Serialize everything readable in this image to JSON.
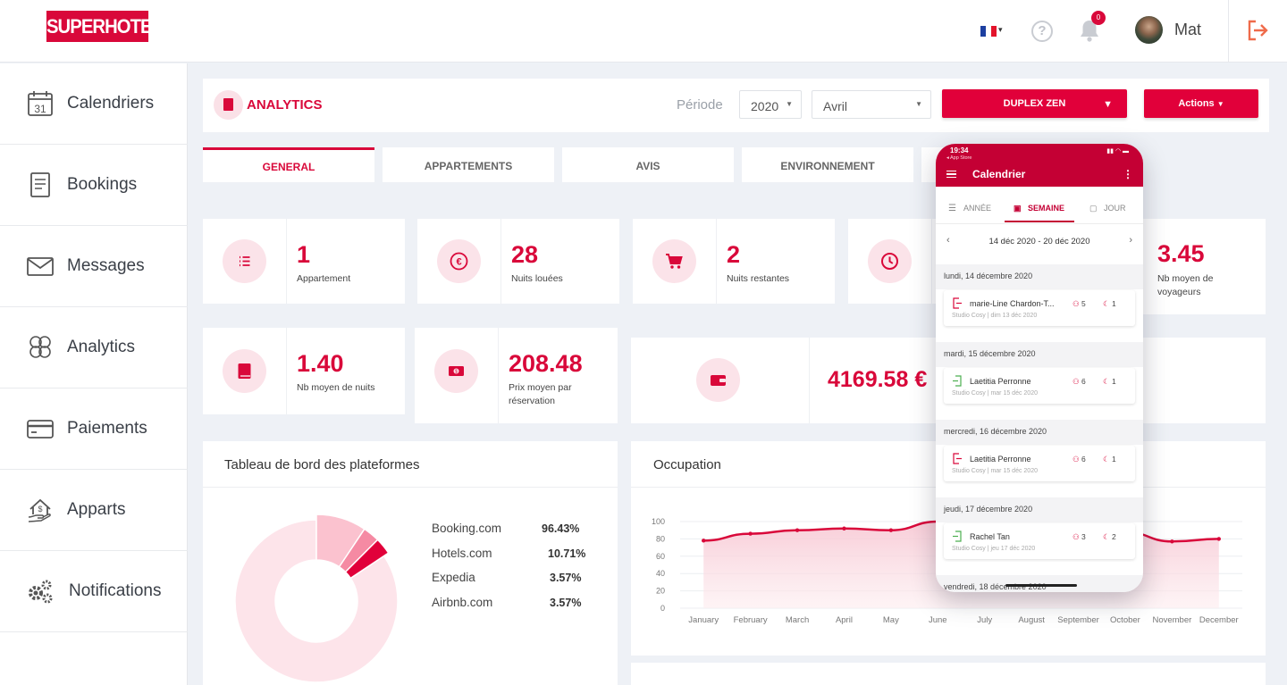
{
  "brand": {
    "logo_text": "SUPERHOTE",
    "accent": "#d9083a"
  },
  "topbar": {
    "notifications_count": "0",
    "user_name": "Mat"
  },
  "sidebar": {
    "items": [
      {
        "label": "Calendriers",
        "icon": "calendar-icon",
        "calendar_day": "31"
      },
      {
        "label": "Bookings",
        "icon": "booking-icon"
      },
      {
        "label": "Messages",
        "icon": "envelope-icon"
      },
      {
        "label": "Analytics",
        "icon": "analytics-icon"
      },
      {
        "label": "Paiements",
        "icon": "credit-card-icon"
      },
      {
        "label": "Apparts",
        "icon": "house-icon"
      },
      {
        "label": "Notifications",
        "icon": "gears-icon"
      }
    ]
  },
  "header": {
    "title": "ANALYTICS",
    "periode_label": "Période",
    "year": "2020",
    "month": "Avril",
    "property_button": "DUPLEX ZEN",
    "actions_button": "Actions"
  },
  "tabs": [
    "GENERAL",
    "APPARTEMENTS",
    "AVIS",
    "ENVIRONNEMENT"
  ],
  "stats_row1": [
    {
      "value": "1",
      "label": "Appartement",
      "icon": "list-icon"
    },
    {
      "value": "28",
      "label": "Nuits louées",
      "icon": "euro-icon"
    },
    {
      "value": "2",
      "label": "Nuits restantes",
      "icon": "cart-icon"
    },
    {
      "value": "",
      "label": "",
      "icon": "clock-icon"
    },
    {
      "value": "3.45",
      "label": "Nb moyen de voyageurs"
    }
  ],
  "stats_row2": [
    {
      "value": "1.40",
      "label": "Nb moyen de nuits",
      "icon": "book-icon"
    },
    {
      "value": "208.48",
      "label": "Prix moyen par réservation",
      "icon": "money-icon"
    },
    {
      "value": "4169.58 €",
      "label": "",
      "icon": "wallet-icon"
    }
  ],
  "platforms": {
    "title": "Tableau de bord des plateformes",
    "rows": [
      {
        "name": "Booking.com",
        "pct": "96.43%"
      },
      {
        "name": "Hotels.com",
        "pct": "10.71%"
      },
      {
        "name": "Expedia",
        "pct": "3.57%"
      },
      {
        "name": "Airbnb.com",
        "pct": "3.57%"
      }
    ]
  },
  "occupation": {
    "title": "Occupation"
  },
  "chart_data": [
    {
      "type": "line",
      "title": "Occupation",
      "categories": [
        "January",
        "February",
        "March",
        "April",
        "May",
        "June",
        "July",
        "August",
        "September",
        "October",
        "November",
        "December"
      ],
      "values": [
        78,
        86,
        90,
        92,
        90,
        100,
        100,
        100,
        95,
        88,
        77,
        80
      ],
      "yticks": [
        "0",
        "20",
        "40",
        "60",
        "80",
        "100"
      ],
      "ylim": [
        0,
        100
      ],
      "color": "#d9083a",
      "area": true
    },
    {
      "type": "pie",
      "title": "Tableau de bord des plateformes",
      "donut": true,
      "slices": [
        {
          "label": "Booking.com",
          "value": 96.43
        },
        {
          "label": "Hotels.com",
          "value": 10.71
        },
        {
          "label": "Expedia",
          "value": 3.57
        },
        {
          "label": "Airbnb.com",
          "value": 3.57
        }
      ]
    }
  ],
  "phone": {
    "status_time": "19:34",
    "store_back": "◂ App Store",
    "title": "Calendrier",
    "tabs": [
      "ANNÉE",
      "SEMAINE",
      "JOUR"
    ],
    "active_tab": "SEMAINE",
    "range": "14 déc 2020 - 20 déc 2020",
    "days": [
      {
        "date": "lundi, 14 décembre 2020",
        "event": {
          "name": "marie-Line Chardon-T...",
          "sub": "Studio Cosy | dim 13 déc 2020",
          "guests": "5",
          "nights": "1",
          "type": "checkout"
        }
      },
      {
        "date": "mardi, 15 décembre 2020",
        "event": {
          "name": "Laetitia Perronne",
          "sub": "Studio Cosy | mar 15 déc 2020",
          "guests": "6",
          "nights": "1",
          "type": "checkin"
        }
      },
      {
        "date": "mercredi, 16 décembre 2020",
        "event": {
          "name": "Laetitia Perronne",
          "sub": "Studio Cosy | mar 15 déc 2020",
          "guests": "6",
          "nights": "1",
          "type": "checkout"
        }
      },
      {
        "date": "jeudi, 17 décembre 2020",
        "event": {
          "name": "Rachel Tan",
          "sub": "Studio Cosy | jeu 17 déc 2020",
          "guests": "3",
          "nights": "2",
          "type": "checkin"
        }
      },
      {
        "date": "vendredi, 18 décembre 2020"
      }
    ]
  }
}
